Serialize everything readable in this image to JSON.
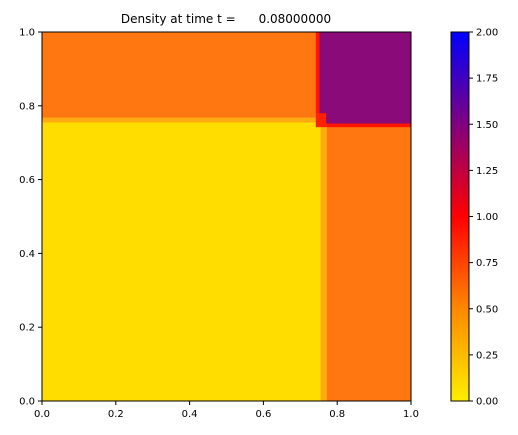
{
  "chart_data": {
    "type": "heatmap",
    "title": "Density at time t =      0.08000000",
    "xlabel": "",
    "ylabel": "",
    "xlim": [
      0,
      1
    ],
    "ylim": [
      0,
      1
    ],
    "x_ticks": [
      "0.0",
      "0.2",
      "0.4",
      "0.6",
      "0.8",
      "1.0"
    ],
    "y_ticks": [
      "0.0",
      "0.2",
      "0.4",
      "0.6",
      "0.8",
      "1.0"
    ],
    "colorbar": {
      "range": [
        0,
        2
      ],
      "ticks": [
        "0.00",
        "0.25",
        "0.50",
        "0.75",
        "1.00",
        "1.25",
        "1.50",
        "1.75",
        "2.00"
      ],
      "colors": [
        "#ffee00",
        "#ff8800",
        "#ff0000",
        "#800080",
        "#0000ff"
      ]
    },
    "regions": [
      {
        "name": "lower-left",
        "x": [
          0.0,
          0.765
        ],
        "y": [
          0.0,
          0.765
        ],
        "value": 0.14,
        "color": "#ffdd00"
      },
      {
        "name": "upper-left",
        "x": [
          0.0,
          0.75
        ],
        "y": [
          0.765,
          1.0
        ],
        "value": 0.55,
        "color": "#ff7711"
      },
      {
        "name": "lower-right",
        "x": [
          0.765,
          1.0
        ],
        "y": [
          0.0,
          0.75
        ],
        "value": 0.55,
        "color": "#ff7711"
      },
      {
        "name": "upper-right",
        "x": [
          0.75,
          1.0
        ],
        "y": [
          0.75,
          1.0
        ],
        "value": 1.5,
        "color": "#8b0a7a"
      }
    ]
  }
}
